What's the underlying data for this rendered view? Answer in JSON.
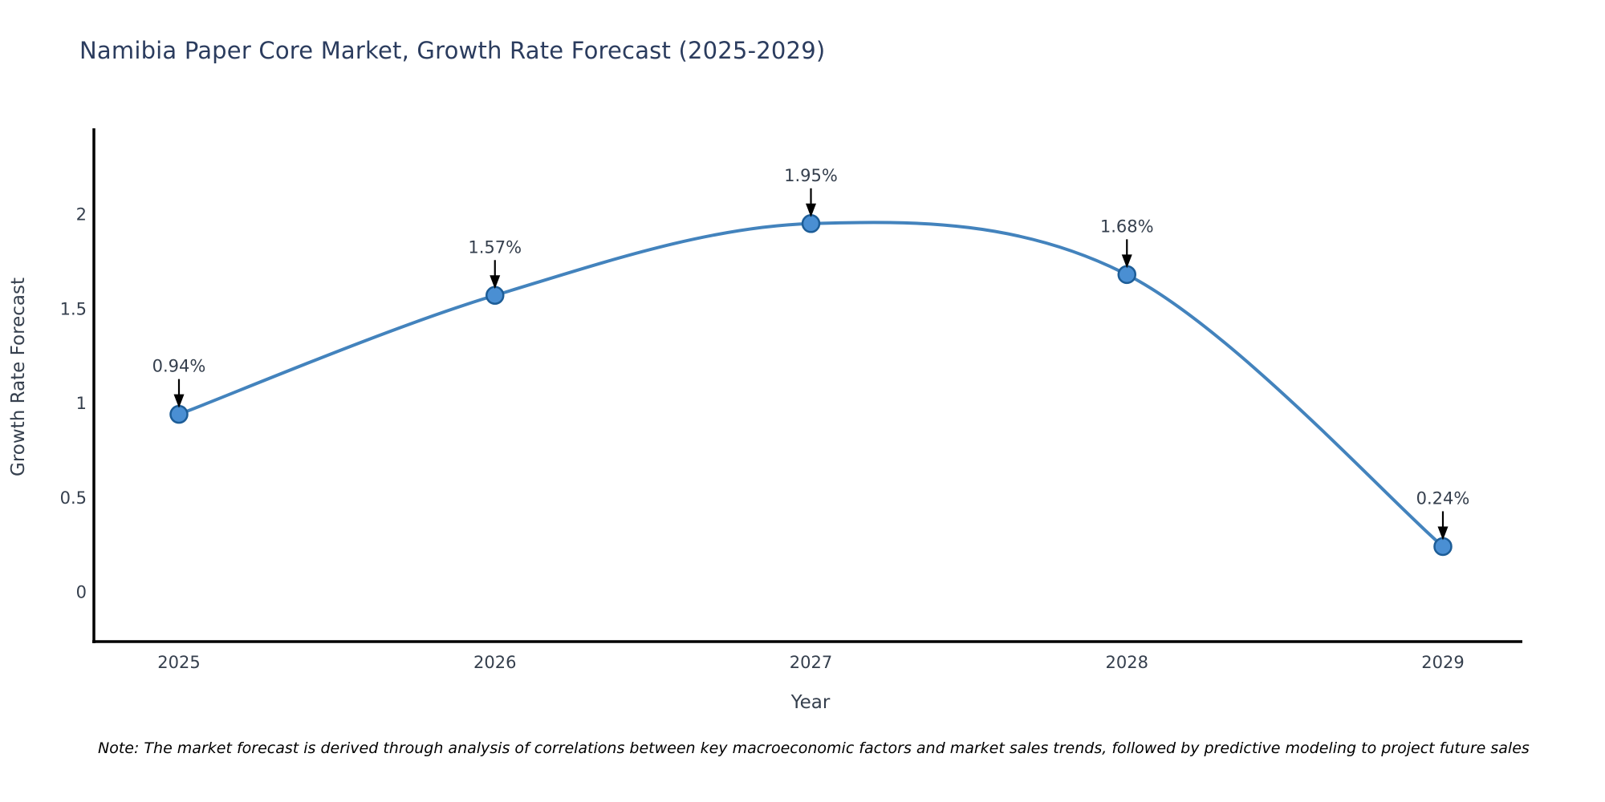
{
  "note": "Note: The market forecast is derived through analysis of correlations between key macroeconomic factors and market sales trends, followed by predictive modeling to project future sales",
  "chart_data": {
    "type": "line",
    "title": "Namibia Paper Core Market, Growth Rate Forecast (2025-2029)",
    "xlabel": "Year",
    "ylabel": "Growth Rate Forecast",
    "x": [
      "2025",
      "2026",
      "2027",
      "2028",
      "2029"
    ],
    "values": [
      0.94,
      1.57,
      1.95,
      1.68,
      0.24
    ],
    "point_labels": [
      "0.94%",
      "1.57%",
      "1.95%",
      "1.68%",
      "0.24%"
    ],
    "ytick_labels": [
      "0",
      "0.5",
      "1",
      "1.5",
      "2"
    ],
    "ytick_values": [
      0,
      0.5,
      1,
      1.5,
      2
    ],
    "ylim": [
      -0.27,
      2.45
    ],
    "grid": false,
    "legend": "none",
    "annotation_style": "value label with down arrow to marker",
    "colors": {
      "line": "#4383bd",
      "marker_fill": "#4a8fd3",
      "marker_edge": "#1d5d97",
      "axis": "#000000",
      "tick_text": "#353f4d",
      "title_text": "#2b3c5e",
      "annotation_arrow": "#000000",
      "note_text": "#000000",
      "background": "#ffffff"
    }
  }
}
